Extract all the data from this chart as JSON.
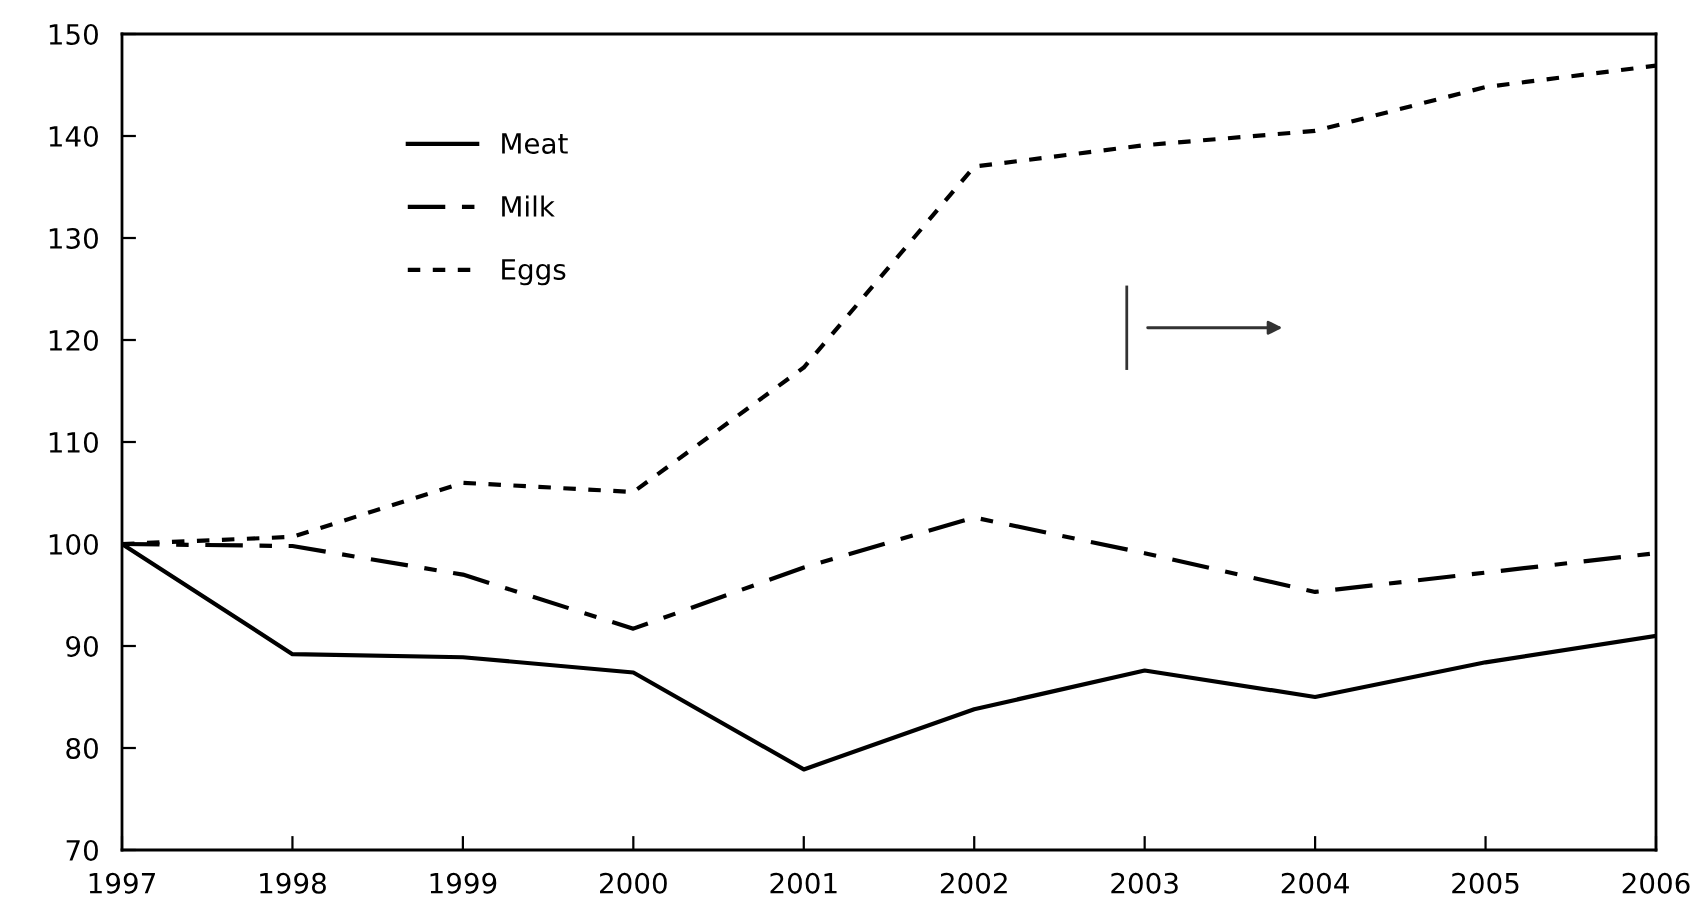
{
  "chart_data": {
    "type": "line",
    "x": [
      1997,
      1998,
      1999,
      2000,
      2001,
      2002,
      2003,
      2004,
      2005,
      2006
    ],
    "series": [
      {
        "name": "Meat",
        "color": "#000000",
        "line_style": "solid",
        "values": [
          100,
          89.2,
          88.9,
          87.4,
          77.9,
          83.8,
          87.6,
          85.0,
          88.4,
          91.0
        ]
      },
      {
        "name": "Milk",
        "color": "#000000",
        "line_style": "dashed",
        "values": [
          100,
          99.8,
          97.0,
          91.7,
          97.7,
          102.6,
          99.1,
          95.3,
          97.2,
          99.1
        ]
      },
      {
        "name": "Eggs",
        "color": "#000000",
        "line_style": "dotted",
        "values": [
          100,
          100.7,
          106.0,
          105.1,
          117.3,
          137.0,
          139.1,
          140.5,
          144.8,
          146.9
        ]
      }
    ],
    "xlim": [
      1997,
      2006
    ],
    "xticks": [
      1997,
      1998,
      1999,
      2000,
      2001,
      2002,
      2003,
      2004,
      2005,
      2006
    ],
    "ylim": [
      70,
      150
    ],
    "yticks": [
      70,
      80,
      90,
      100,
      110,
      120,
      130,
      140,
      150
    ],
    "grid": false,
    "legend": "top left",
    "marker": "none"
  }
}
